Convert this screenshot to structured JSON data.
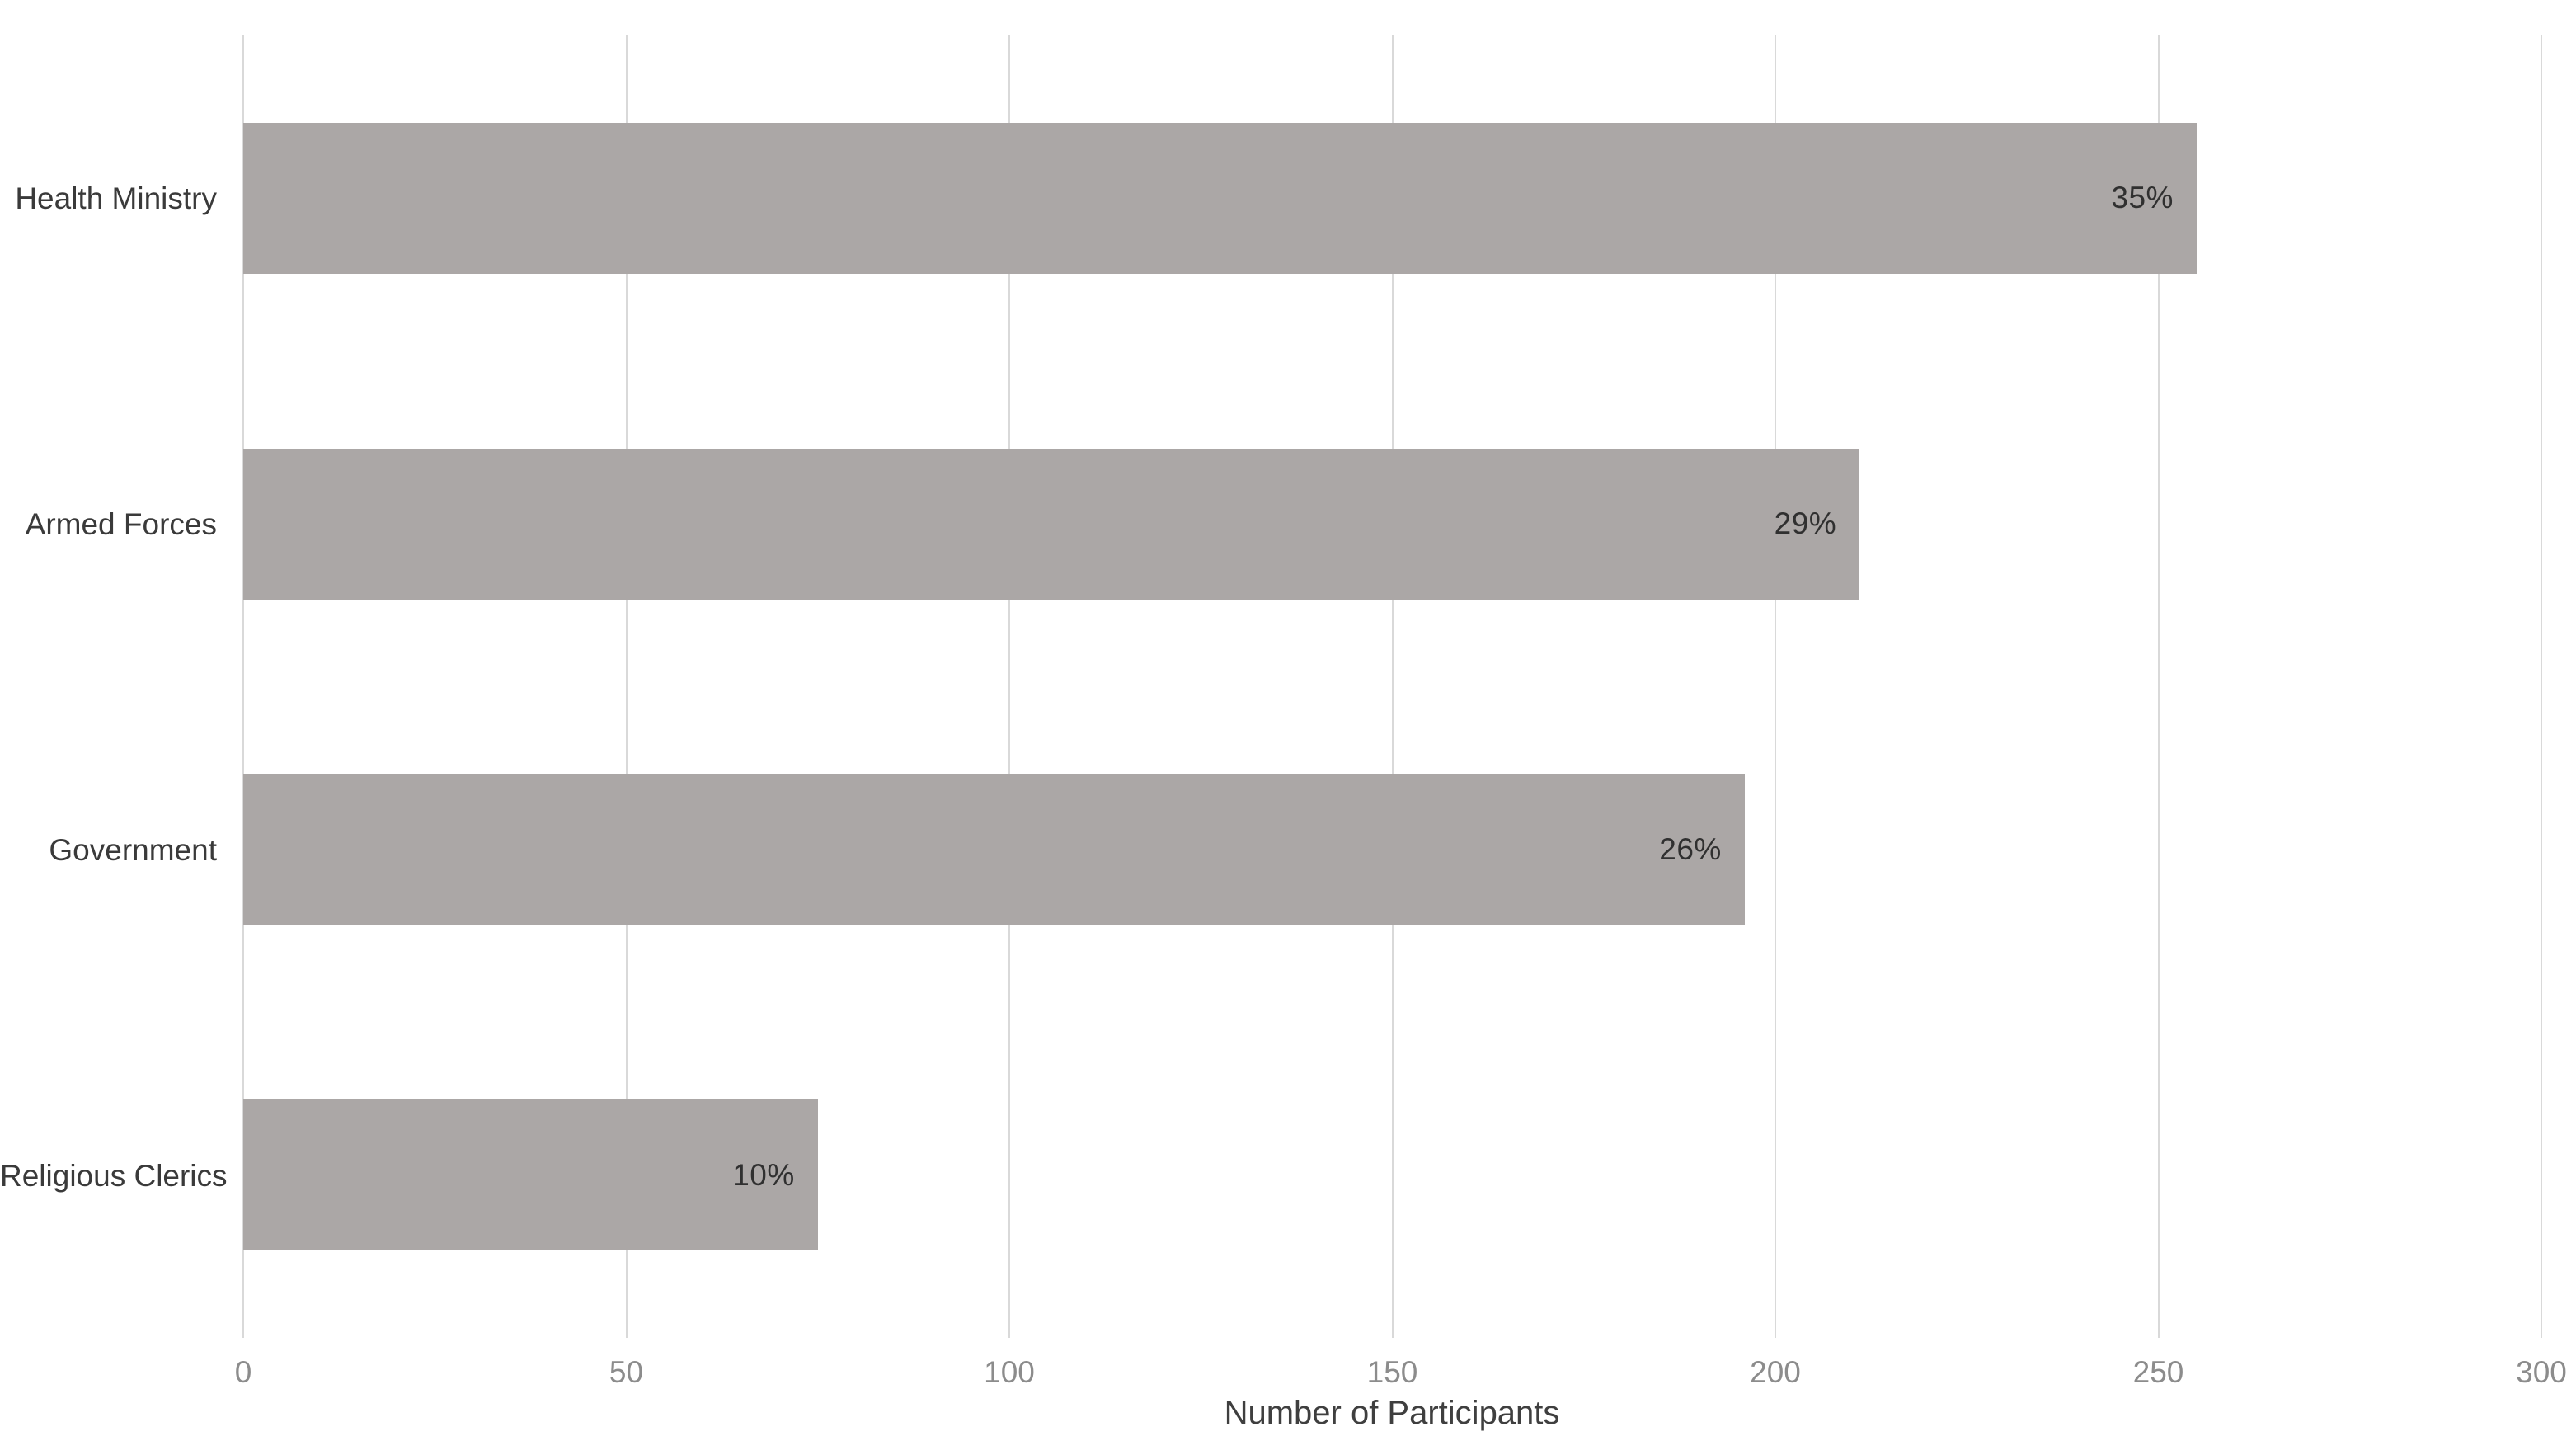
{
  "chart_data": {
    "type": "bar",
    "orientation": "horizontal",
    "title": "",
    "xlabel": "Number of Participants",
    "ylabel": "",
    "categories": [
      "Health Ministry",
      "Armed Forces",
      "Government",
      "Religious Clerics"
    ],
    "series": [
      {
        "name": "Participants",
        "values": [
          255,
          211,
          196,
          75
        ],
        "data_labels": [
          "35%",
          "29%",
          "26%",
          "10%"
        ]
      }
    ],
    "xlim": [
      0,
      300
    ],
    "xticks": [
      0,
      50,
      100,
      150,
      200,
      250,
      300
    ],
    "grid": true,
    "legend": "none",
    "colors": {
      "bar_fill": "#aba7a6",
      "gridline": "#d9d9d9",
      "tick_label": "#8c8c8c",
      "category_label": "#3a3a3a",
      "value_label": "#303030",
      "axis_title": "#3f3f3f",
      "background": "#ffffff"
    }
  }
}
